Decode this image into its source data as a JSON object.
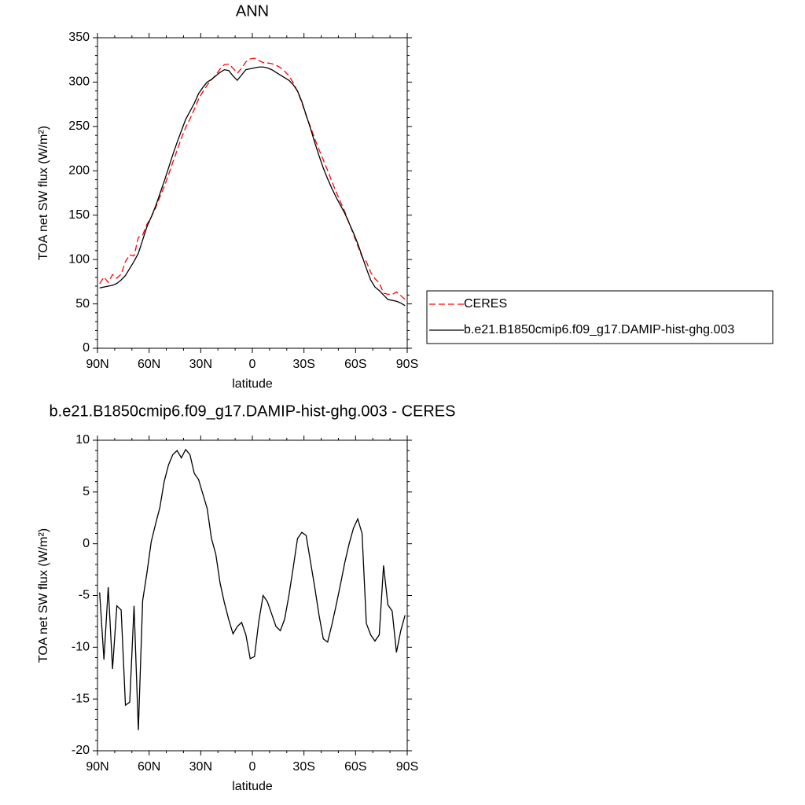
{
  "chart_data": [
    {
      "type": "line",
      "title": "ANN",
      "x_label": "latitude",
      "y_label": "TOA net SW flux (W/m²)",
      "x": [
        88.75,
        86.25,
        83.75,
        81.25,
        78.75,
        76.25,
        73.75,
        71.25,
        68.75,
        66.25,
        63.75,
        61.25,
        58.75,
        56.25,
        53.75,
        51.25,
        48.75,
        46.25,
        43.75,
        41.25,
        38.75,
        36.25,
        33.75,
        31.25,
        28.75,
        26.25,
        23.75,
        21.25,
        18.75,
        16.25,
        13.75,
        11.25,
        8.75,
        6.25,
        3.75,
        1.25,
        -1.25,
        -3.75,
        -6.25,
        -8.75,
        -11.25,
        -13.75,
        -16.25,
        -18.75,
        -21.25,
        -23.75,
        -26.25,
        -28.75,
        -31.25,
        -33.75,
        -36.25,
        -38.75,
        -41.25,
        -43.75,
        -46.25,
        -48.75,
        -51.25,
        -53.75,
        -56.25,
        -58.75,
        -61.25,
        -63.75,
        -66.25,
        -68.75,
        -71.25,
        -73.75,
        -76.25,
        -78.75,
        -81.25,
        -83.75,
        -86.25,
        -88.75
      ],
      "series": [
        {
          "name": "CERES",
          "color": "#ff0000",
          "line_style": "dashed",
          "values": [
            72.7,
            80.2,
            74.2,
            83.1,
            79,
            83.4,
            97.6,
            105.3,
            104,
            125,
            127.5,
            139.8,
            147.8,
            158.1,
            170.5,
            182,
            195.4,
            209.4,
            223,
            236.7,
            248.9,
            258.4,
            269.2,
            280.8,
            289.2,
            296.6,
            302.5,
            308,
            314.8,
            319.7,
            320.3,
            315.7,
            310,
            315.6,
            322.8,
            326.1,
            326.9,
            324.5,
            322,
            321.6,
            320.8,
            319,
            316.4,
            312.3,
            307,
            299.3,
            289.5,
            276.9,
            262.2,
            249.7,
            236.2,
            223.9,
            212.2,
            200.5,
            187.8,
            175.9,
            164.9,
            153.8,
            141,
            128.5,
            115.6,
            103,
            97.7,
            85.8,
            78.4,
            73.8,
            62.1,
            60.9,
            60.5,
            63.5,
            59.4,
            54.9
          ]
        },
        {
          "name": "b.e21.B1850cmip6.f09_g17.DAMIP-hist-ghg.003",
          "color": "#000000",
          "line_style": "solid",
          "values": [
            68,
            69,
            70,
            71,
            73,
            77,
            82,
            90,
            98,
            107,
            122,
            137,
            148,
            160,
            174,
            188,
            203,
            218,
            232,
            245,
            258,
            267,
            276,
            287,
            294,
            300,
            303,
            307,
            311,
            314,
            313,
            307,
            302,
            308,
            314,
            315,
            316,
            317,
            317,
            316,
            314,
            311,
            308,
            305,
            302,
            297,
            290,
            278,
            263,
            248,
            232,
            217,
            203,
            191,
            180,
            170,
            161,
            152,
            141,
            130,
            118,
            104,
            90,
            77,
            69,
            65,
            60,
            55,
            54,
            53,
            51,
            48
          ]
        }
      ],
      "xlim": [
        90,
        -90
      ],
      "xticks": [
        {
          "value": 90,
          "label": "90N"
        },
        {
          "value": 60,
          "label": "60N"
        },
        {
          "value": 30,
          "label": "30N"
        },
        0,
        {
          "value": -30,
          "label": "30S"
        },
        {
          "value": -60,
          "label": "60S"
        },
        {
          "value": -90,
          "label": "90S"
        }
      ],
      "ylim": [
        0,
        350
      ],
      "yticks": [
        0,
        50,
        100,
        150,
        200,
        250,
        300,
        350
      ],
      "legend": "right"
    },
    {
      "type": "line",
      "title": "b.e21.B1850cmip6.f09_g17.DAMIP-hist-ghg.003 - CERES",
      "x_label": "latitude",
      "y_label": "TOA net SW flux (W/m²)",
      "x": [
        88.75,
        86.25,
        83.75,
        81.25,
        78.75,
        76.25,
        73.75,
        71.25,
        68.75,
        66.25,
        63.75,
        61.25,
        58.75,
        56.25,
        53.75,
        51.25,
        48.75,
        46.25,
        43.75,
        41.25,
        38.75,
        36.25,
        33.75,
        31.25,
        28.75,
        26.25,
        23.75,
        21.25,
        18.75,
        16.25,
        13.75,
        11.25,
        8.75,
        6.25,
        3.75,
        1.25,
        -1.25,
        -3.75,
        -6.25,
        -8.75,
        -11.25,
        -13.75,
        -16.25,
        -18.75,
        -21.25,
        -23.75,
        -26.25,
        -28.75,
        -31.25,
        -33.75,
        -36.25,
        -38.75,
        -41.25,
        -43.75,
        -46.25,
        -48.75,
        -51.25,
        -53.75,
        -56.25,
        -58.75,
        -61.25,
        -63.75,
        -66.25,
        -68.75,
        -71.25,
        -73.75,
        -76.25,
        -78.75,
        -81.25,
        -83.75,
        -86.25,
        -88.75
      ],
      "series": [
        {
          "color": "#000000",
          "line_style": "solid",
          "values": [
            -4.7,
            -11.2,
            -4.2,
            -12.1,
            -6,
            -6.4,
            -15.6,
            -15.3,
            -6,
            -18,
            -5.5,
            -2.8,
            0.2,
            1.9,
            3.5,
            6,
            7.6,
            8.6,
            9,
            8.3,
            9.1,
            8.6,
            6.8,
            6.2,
            4.8,
            3.4,
            0.5,
            -1,
            -3.8,
            -5.7,
            -7.3,
            -8.7,
            -8,
            -7.6,
            -8.8,
            -11.1,
            -10.9,
            -7.5,
            -5,
            -5.6,
            -6.8,
            -8,
            -8.4,
            -7.3,
            -5,
            -2.3,
            0.5,
            1.1,
            0.8,
            -1.7,
            -4.2,
            -6.9,
            -9.2,
            -9.5,
            -7.8,
            -5.9,
            -3.9,
            -1.8,
            0,
            1.5,
            2.4,
            1,
            -7.7,
            -8.8,
            -9.4,
            -8.8,
            -2.1,
            -5.9,
            -6.5,
            -10.5,
            -8.4,
            -6.9
          ]
        }
      ],
      "xlim": [
        90,
        -90
      ],
      "xticks": [
        {
          "value": 90,
          "label": "90N"
        },
        {
          "value": 60,
          "label": "60N"
        },
        {
          "value": 30,
          "label": "30N"
        },
        0,
        {
          "value": -30,
          "label": "30S"
        },
        {
          "value": -60,
          "label": "60S"
        },
        {
          "value": -90,
          "label": "90S"
        }
      ],
      "ylim": [
        -20,
        10
      ],
      "yticks": [
        -20,
        -15,
        -10,
        -5,
        0,
        5,
        10
      ]
    }
  ]
}
